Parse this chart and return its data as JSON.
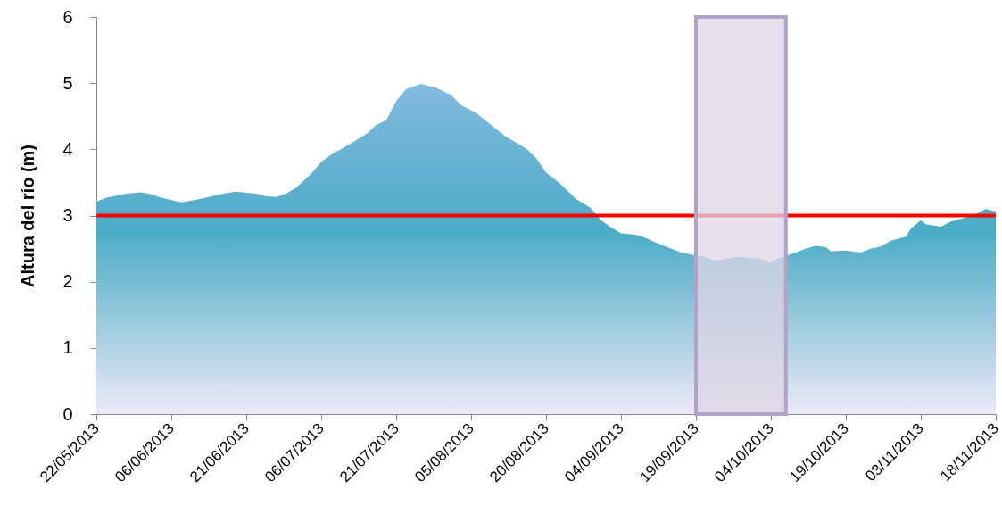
{
  "chart_data": {
    "type": "area",
    "ylabel": "Altura del río (m)",
    "x": [
      "2013-05-22",
      "2013-05-24",
      "2013-05-28",
      "2013-05-31",
      "2013-06-02",
      "2013-06-04",
      "2013-06-08",
      "2013-06-11",
      "2013-06-14",
      "2013-06-17",
      "2013-06-19",
      "2013-06-23",
      "2013-06-25",
      "2013-06-27",
      "2013-06-29",
      "2013-07-01",
      "2013-07-04",
      "2013-07-06",
      "2013-07-08",
      "2013-07-11",
      "2013-07-13",
      "2013-07-15",
      "2013-07-17",
      "2013-07-19",
      "2013-07-21",
      "2013-07-23",
      "2013-07-26",
      "2013-07-29",
      "2013-08-01",
      "2013-08-03",
      "2013-08-06",
      "2013-08-09",
      "2013-08-12",
      "2013-08-16",
      "2013-08-18",
      "2013-08-20",
      "2013-08-23",
      "2013-08-26",
      "2013-08-29",
      "2013-08-31",
      "2013-09-02",
      "2013-09-04",
      "2013-09-07",
      "2013-09-09",
      "2013-09-11",
      "2013-09-14",
      "2013-09-16",
      "2013-09-18",
      "2013-09-21",
      "2013-09-23",
      "2013-09-26",
      "2013-09-27",
      "2013-09-30",
      "2013-10-02",
      "2013-10-04",
      "2013-10-06",
      "2013-10-09",
      "2013-10-11",
      "2013-10-13",
      "2013-10-15",
      "2013-10-16",
      "2013-10-19",
      "2013-10-22",
      "2013-10-24",
      "2013-10-26",
      "2013-10-28",
      "2013-10-31",
      "2013-11-01",
      "2013-11-03",
      "2013-11-04",
      "2013-11-07",
      "2013-11-09",
      "2013-11-11",
      "2013-11-14",
      "2013-11-16",
      "2013-11-18"
    ],
    "series": [
      {
        "color": "#4bacc6",
        "values": [
          3.21,
          3.27,
          3.33,
          3.35,
          3.32,
          3.27,
          3.2,
          3.24,
          3.29,
          3.34,
          3.36,
          3.33,
          3.29,
          3.28,
          3.33,
          3.42,
          3.63,
          3.81,
          3.92,
          4.05,
          4.14,
          4.23,
          4.37,
          4.44,
          4.73,
          4.91,
          4.99,
          4.93,
          4.82,
          4.67,
          4.55,
          4.37,
          4.19,
          4.01,
          3.87,
          3.65,
          3.47,
          3.25,
          3.11,
          2.93,
          2.82,
          2.73,
          2.71,
          2.66,
          2.59,
          2.5,
          2.44,
          2.41,
          2.37,
          2.32,
          2.36,
          2.38,
          2.36,
          2.35,
          2.29,
          2.37,
          2.44,
          2.5,
          2.54,
          2.52,
          2.46,
          2.47,
          2.44,
          2.5,
          2.53,
          2.62,
          2.68,
          2.8,
          2.93,
          2.87,
          2.83,
          2.91,
          2.95,
          3.02,
          3.1,
          3.06
        ]
      }
    ],
    "xlim": [
      "2013-05-22",
      "2013-11-18"
    ],
    "xticks": [
      {
        "value": "2013-05-22",
        "label": "22/05/2013"
      },
      {
        "value": "2013-06-06",
        "label": "06/06/2013"
      },
      {
        "value": "2013-06-21",
        "label": "21/06/2013"
      },
      {
        "value": "2013-07-06",
        "label": "06/07/2013"
      },
      {
        "value": "2013-07-21",
        "label": "21/07/2013"
      },
      {
        "value": "2013-08-05",
        "label": "05/08/2013"
      },
      {
        "value": "2013-08-20",
        "label": "20/08/2013"
      },
      {
        "value": "2013-09-04",
        "label": "04/09/2013"
      },
      {
        "value": "2013-09-19",
        "label": "19/09/2013"
      },
      {
        "value": "2013-10-04",
        "label": "04/10/2013"
      },
      {
        "value": "2013-10-19",
        "label": "19/10/2013"
      },
      {
        "value": "2013-11-03",
        "label": "03/11/2013"
      },
      {
        "value": "2013-11-18",
        "label": "18/11/2013"
      }
    ],
    "ylim": [
      0,
      6
    ],
    "yticks": [
      0,
      1,
      2,
      3,
      4,
      5,
      6
    ],
    "ref_lines": [
      {
        "axis": "y",
        "value": 3,
        "color": "#ff0000"
      }
    ],
    "bands": [
      {
        "axis": "x",
        "from": "2013-09-19",
        "to": "2013-10-07",
        "color": "#b3a2c7"
      }
    ]
  }
}
